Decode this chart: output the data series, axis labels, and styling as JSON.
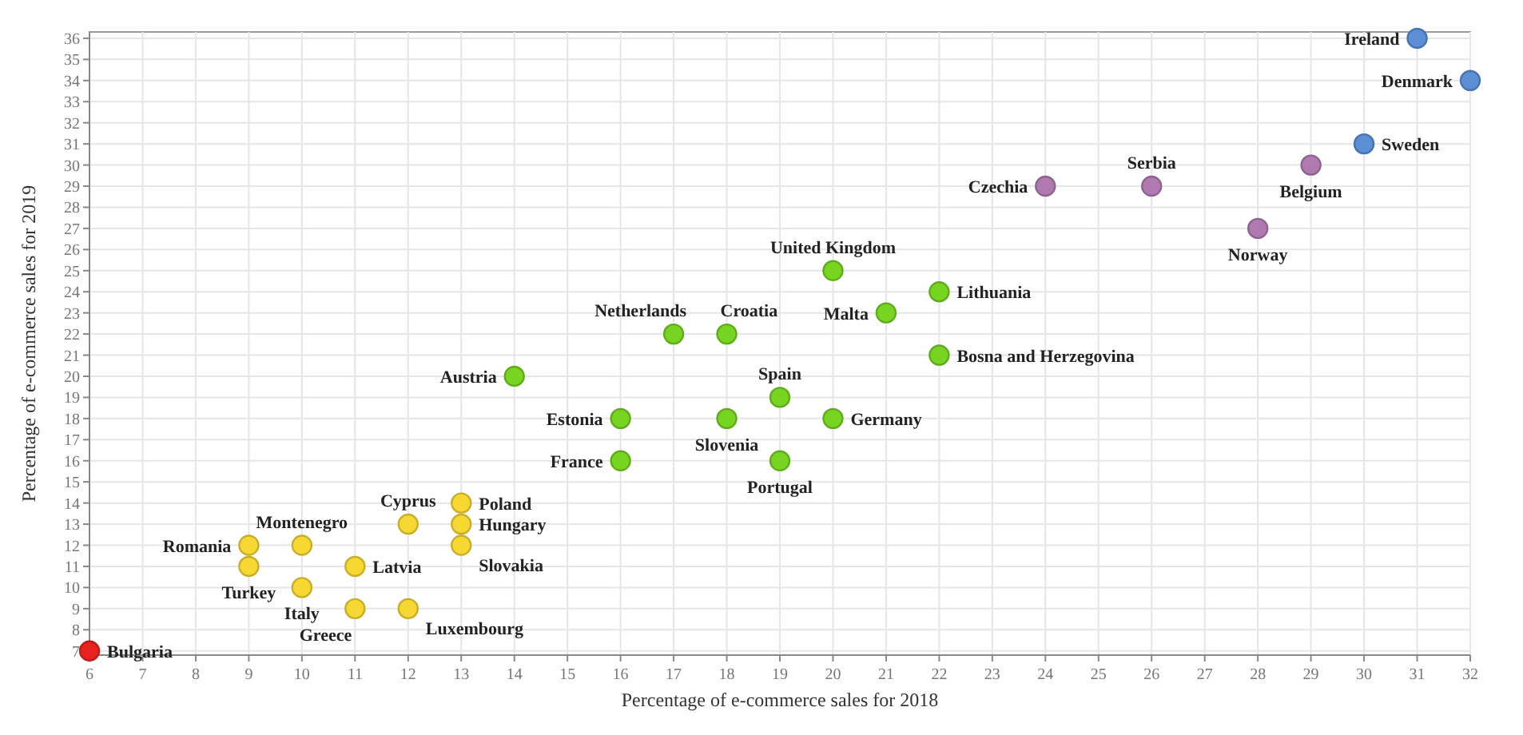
{
  "chart_data": {
    "type": "scatter",
    "xlabel": "Percentage of e-commerce sales for 2018",
    "ylabel": "Percentage of e-commerce sales for 2019",
    "xlim": [
      6,
      32
    ],
    "ylim": [
      6.8,
      36.3
    ],
    "xticks": [
      6,
      7,
      8,
      9,
      10,
      11,
      12,
      13,
      14,
      15,
      16,
      17,
      18,
      19,
      20,
      21,
      22,
      23,
      24,
      25,
      26,
      27,
      28,
      29,
      30,
      31,
      32
    ],
    "yticks": [
      7,
      8,
      9,
      10,
      11,
      12,
      13,
      14,
      15,
      16,
      17,
      18,
      19,
      20,
      21,
      22,
      23,
      24,
      25,
      26,
      27,
      28,
      29,
      30,
      31,
      32,
      33,
      34,
      35,
      36
    ],
    "grid": true,
    "marker": "circle",
    "series": [
      {
        "color": "#e8231f",
        "x": [
          6
        ],
        "values": [
          7
        ]
      },
      {
        "color": "#f7d731",
        "x": [
          9,
          9,
          10,
          10,
          11,
          11,
          12,
          12,
          13,
          13,
          13
        ],
        "values": [
          12,
          11,
          12,
          10,
          11,
          9,
          13,
          9,
          14,
          13,
          12
        ]
      },
      {
        "color": "#77d421",
        "x": [
          14,
          16,
          16,
          17,
          18,
          18,
          19,
          19,
          20,
          20,
          21,
          22,
          22
        ],
        "values": [
          20,
          18,
          16,
          22,
          22,
          18,
          19,
          16,
          25,
          18,
          23,
          24,
          21
        ]
      },
      {
        "color": "#b07ab0",
        "x": [
          24,
          26,
          29,
          28
        ],
        "values": [
          29,
          29,
          30,
          27
        ]
      },
      {
        "color": "#5b8fd6",
        "x": [
          31,
          32,
          30
        ],
        "values": [
          36,
          34,
          31
        ]
      }
    ],
    "annotations": [
      {
        "text": "Bulgaria",
        "x": 6,
        "y": 7
      },
      {
        "text": "Romania",
        "x": 9,
        "y": 12
      },
      {
        "text": "Turkey",
        "x": 9,
        "y": 11
      },
      {
        "text": "Montenegro",
        "x": 10,
        "y": 12
      },
      {
        "text": "Italy",
        "x": 10,
        "y": 10
      },
      {
        "text": "Latvia",
        "x": 11,
        "y": 11
      },
      {
        "text": "Greece",
        "x": 11,
        "y": 9
      },
      {
        "text": "Cyprus",
        "x": 12,
        "y": 13
      },
      {
        "text": "Luxembourg",
        "x": 12,
        "y": 9
      },
      {
        "text": "Poland",
        "x": 13,
        "y": 14
      },
      {
        "text": "Hungary",
        "x": 13,
        "y": 13
      },
      {
        "text": "Slovakia",
        "x": 13,
        "y": 12
      },
      {
        "text": "Austria",
        "x": 14,
        "y": 20
      },
      {
        "text": "Estonia",
        "x": 16,
        "y": 18
      },
      {
        "text": "France",
        "x": 16,
        "y": 16
      },
      {
        "text": "Netherlands",
        "x": 17,
        "y": 22
      },
      {
        "text": "Croatia",
        "x": 18,
        "y": 22
      },
      {
        "text": "Slovenia",
        "x": 18,
        "y": 18
      },
      {
        "text": "Spain",
        "x": 19,
        "y": 19
      },
      {
        "text": "Portugal",
        "x": 19,
        "y": 16
      },
      {
        "text": "United Kingdom",
        "x": 20,
        "y": 25
      },
      {
        "text": "Germany",
        "x": 20,
        "y": 18
      },
      {
        "text": "Malta",
        "x": 21,
        "y": 23
      },
      {
        "text": "Lithuania",
        "x": 22,
        "y": 24
      },
      {
        "text": "Bosna and Herzegovina",
        "x": 22,
        "y": 21
      },
      {
        "text": "Czechia",
        "x": 24,
        "y": 29
      },
      {
        "text": "Serbia",
        "x": 26,
        "y": 29
      },
      {
        "text": "Belgium",
        "x": 29,
        "y": 30
      },
      {
        "text": "Norway",
        "x": 28,
        "y": 27
      },
      {
        "text": "Ireland",
        "x": 31,
        "y": 36
      },
      {
        "text": "Denmark",
        "x": 32,
        "y": 34
      },
      {
        "text": "Sweden",
        "x": 30,
        "y": 31
      }
    ]
  }
}
